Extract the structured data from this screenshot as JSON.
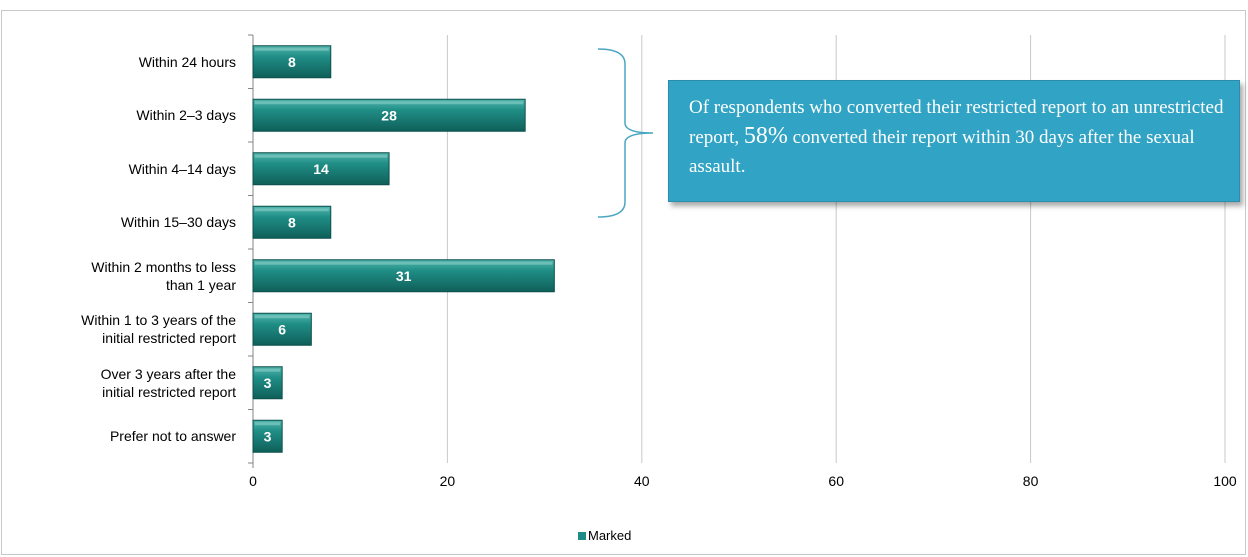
{
  "chart_data": {
    "type": "bar",
    "orientation": "horizontal",
    "categories": [
      "Within 24 hours",
      "Within 2–3 days",
      "Within 4–14 days",
      "Within 15–30 days",
      "Within 2 months to less than 1 year",
      "Within 1 to 3 years of the initial restricted report",
      "Over 3 years after the initial restricted report",
      "Prefer not to answer"
    ],
    "category_lines": [
      [
        "Within 24 hours"
      ],
      [
        "Within 2–3 days"
      ],
      [
        "Within 4–14 days"
      ],
      [
        "Within 15–30 days"
      ],
      [
        "Within 2 months to less",
        "than 1 year"
      ],
      [
        "Within 1 to 3 years of the",
        "initial restricted report"
      ],
      [
        "Over 3 years after the",
        "initial restricted report"
      ],
      [
        "Prefer not to answer"
      ]
    ],
    "series": [
      {
        "name": "Marked",
        "values": [
          8,
          28,
          14,
          8,
          31,
          6,
          3,
          3
        ]
      }
    ],
    "xlim": [
      0,
      100
    ],
    "xticks": [
      0,
      20,
      40,
      60,
      80,
      100
    ],
    "grid": true,
    "legend": "bottom-center",
    "bar_color": "#1f8d85",
    "annotation": {
      "text_before": "Of respondents who converted their restricted report to an unrestricted report, ",
      "highlight": "58%",
      "text_after": " converted their report within 30 days after the sexual assault.",
      "background": "#31a3c4",
      "bracket_categories": [
        "Within 24 hours",
        "Within 2–3 days",
        "Within 4–14 days",
        "Within 15–30 days"
      ]
    }
  }
}
